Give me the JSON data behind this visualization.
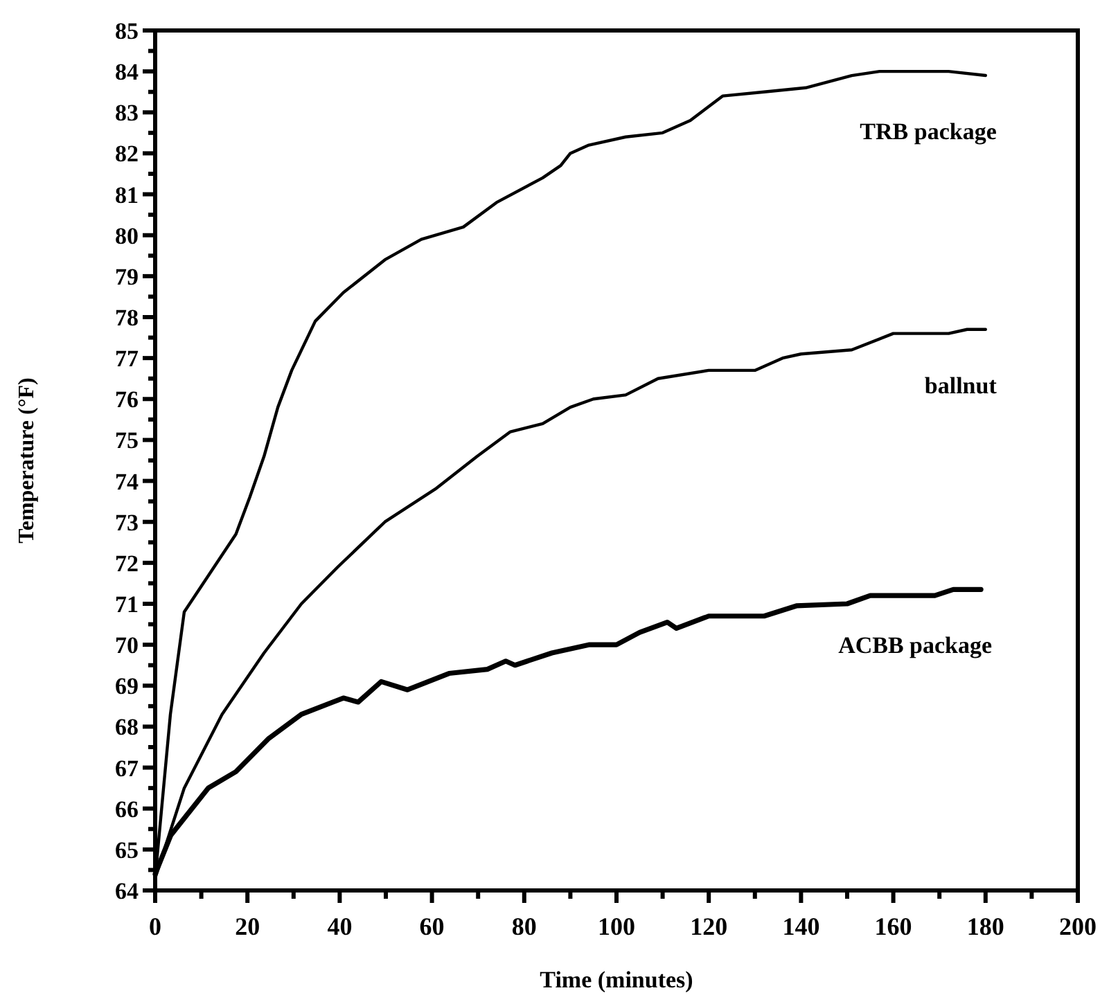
{
  "chart_data": {
    "type": "line",
    "xlabel": "Time (minutes)",
    "ylabel": "Temperature (°F)",
    "xlim": [
      0,
      200
    ],
    "ylim": [
      64,
      85
    ],
    "xticks": [
      0,
      {
        "value": 10,
        "label": null
      },
      20,
      {
        "value": 30,
        "label": null
      },
      40,
      {
        "value": 50,
        "label": null
      },
      60,
      {
        "value": 70,
        "label": null
      },
      80,
      {
        "value": 90,
        "label": null
      },
      100,
      {
        "value": 110,
        "label": null
      },
      120,
      {
        "value": 130,
        "label": null
      },
      140,
      {
        "value": 150,
        "label": null
      },
      160,
      {
        "value": 170,
        "label": null
      },
      180,
      {
        "value": 190,
        "label": null
      },
      200
    ],
    "yticks": [
      64,
      {
        "value": 64.5,
        "label": null
      },
      65,
      {
        "value": 65.5,
        "label": null
      },
      66,
      {
        "value": 66.5,
        "label": null
      },
      67,
      {
        "value": 67.5,
        "label": null
      },
      68,
      {
        "value": 68.5,
        "label": null
      },
      69,
      {
        "value": 69.5,
        "label": null
      },
      70,
      {
        "value": 70.5,
        "label": null
      },
      71,
      {
        "value": 71.5,
        "label": null
      },
      72,
      {
        "value": 72.5,
        "label": null
      },
      73,
      {
        "value": 73.5,
        "label": null
      },
      74,
      {
        "value": 74.5,
        "label": null
      },
      75,
      {
        "value": 75.5,
        "label": null
      },
      76,
      {
        "value": 76.5,
        "label": null
      },
      77,
      {
        "value": 77.5,
        "label": null
      },
      78,
      {
        "value": 78.5,
        "label": null
      },
      79,
      {
        "value": 79.5,
        "label": null
      },
      80,
      {
        "value": 80.5,
        "label": null
      },
      81,
      {
        "value": 81.5,
        "label": null
      },
      82,
      {
        "value": 82.5,
        "label": null
      },
      83,
      {
        "value": 83.5,
        "label": null
      },
      84,
      {
        "value": 84.5,
        "label": null
      },
      85
    ],
    "grid": false,
    "legend": false,
    "marker": "none",
    "line_style": "solid",
    "series": [
      {
        "name": "TRB package",
        "color": "#000000",
        "x": [
          0,
          3.3,
          6.3,
          17.5,
          20.5,
          23.6,
          26.6,
          29.6,
          34.7,
          40.8,
          49.8,
          57.7,
          66.8,
          74,
          84,
          87.9,
          90,
          94,
          102,
          110,
          116,
          123,
          132,
          141,
          151,
          157,
          172,
          180
        ],
        "values": [
          64.3,
          68.3,
          70.8,
          72.7,
          73.6,
          74.6,
          75.8,
          76.7,
          77.9,
          78.6,
          79.4,
          79.9,
          80.2,
          80.8,
          81.4,
          81.7,
          82.0,
          82.2,
          82.4,
          82.5,
          82.8,
          83.4,
          83.5,
          83.6,
          83.9,
          84.0,
          84.0,
          83.9
        ]
      },
      {
        "name": "ballnut",
        "color": "#000000",
        "x": [
          0,
          6.3,
          14.5,
          23.6,
          31.7,
          39.6,
          49.8,
          60.7,
          69.8,
          77,
          84,
          90,
          95,
          102,
          109,
          120,
          130,
          136,
          140,
          151,
          160,
          172,
          176,
          180
        ],
        "values": [
          64.3,
          66.5,
          68.3,
          69.8,
          71.0,
          71.9,
          73.0,
          73.8,
          74.6,
          75.2,
          75.4,
          75.8,
          76.0,
          76.1,
          76.5,
          76.7,
          76.7,
          77.0,
          77.1,
          77.2,
          77.6,
          77.6,
          77.7,
          77.7
        ]
      },
      {
        "name": "ACBB package",
        "color": "#000000",
        "x": [
          0,
          3.4,
          11.5,
          17.5,
          24.5,
          31.7,
          40.8,
          44,
          49,
          54.7,
          63.7,
          72,
          76,
          78,
          86,
          94,
          100,
          105,
          111,
          113,
          120,
          132,
          139,
          150,
          155,
          169,
          173,
          179
        ],
        "values": [
          64.4,
          65.35,
          66.5,
          66.9,
          67.7,
          68.3,
          68.7,
          68.6,
          69.1,
          68.9,
          69.3,
          69.4,
          69.6,
          69.5,
          69.8,
          70.0,
          70.0,
          70.3,
          70.55,
          70.4,
          70.7,
          70.7,
          70.95,
          71.0,
          71.2,
          71.2,
          71.35,
          71.35
        ]
      }
    ]
  }
}
